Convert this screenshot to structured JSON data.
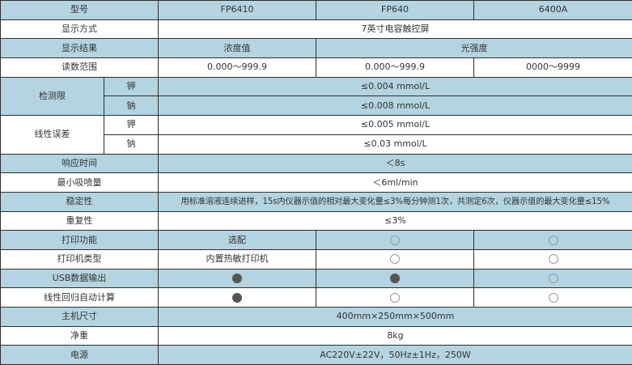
{
  "colors": {
    "header_bg": "#b3d4e0",
    "border": "#2e2e2e",
    "filled_dot": "#555555"
  },
  "header": {
    "label": "型号",
    "models": [
      "FP6410",
      "FP640",
      "6400A"
    ]
  },
  "rows": {
    "display_mode": {
      "label": "显示方式",
      "value": "7英寸电容触控屏"
    },
    "display_result": {
      "label": "显示结果",
      "values": [
        "浓度值",
        "光强度"
      ]
    },
    "range": {
      "label": "读数范围",
      "values": [
        "0.000～999.9",
        "0.000～999.9",
        "0000～9999"
      ]
    },
    "detection_limit": {
      "label": "检测限",
      "k_label": "钾",
      "k": "≤0.004 mmol/L",
      "na_label": "钠",
      "na": "≤0.008 mmol/L"
    },
    "linearity_error": {
      "label": "线性误差",
      "k_label": "钾",
      "k": "≤0.005 mmol/L",
      "na_label": "钠",
      "na": "≤0.03 mmol/L"
    },
    "response_time": {
      "label": "响应时间",
      "value": "＜8s"
    },
    "min_spray": {
      "label": "最小吸喷量",
      "value": "＜6ml/min"
    },
    "stability": {
      "label": "稳定性",
      "value": "用标准溶液连续进样，15s内仪器示值的相对最大变化量≤3%每分钟测1次，共测定6次，仪器示值的最大变化量≤15%"
    },
    "repeatability": {
      "label": "重复性",
      "value": "≤3%"
    },
    "print": {
      "label": "打印功能",
      "values": [
        "选配",
        "empty",
        "empty"
      ]
    },
    "printer_type": {
      "label": "打印机类型",
      "values": [
        "内置热敏打印机",
        "empty",
        "empty"
      ]
    },
    "usb": {
      "label": "USB数据输出",
      "values": [
        "filled",
        "filled",
        "empty"
      ]
    },
    "linear_regression": {
      "label": "线性回归自动计算",
      "values": [
        "filled",
        "empty",
        "empty"
      ]
    },
    "size": {
      "label": "主机尺寸",
      "value": "400mm×250mm×500mm"
    },
    "weight": {
      "label": "净重",
      "value": "8kg"
    },
    "power": {
      "label": "电源",
      "value": "AC220V±22V，50Hz±1Hz，250W"
    }
  }
}
